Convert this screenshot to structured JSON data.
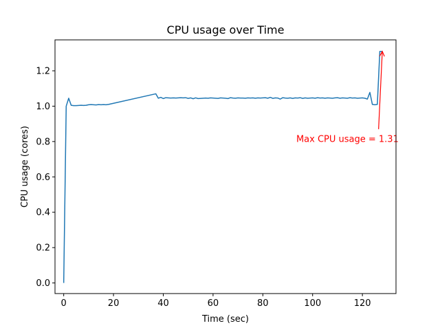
{
  "chart_data": {
    "type": "line",
    "title": "CPU usage over Time",
    "xlabel": "Time (sec)",
    "ylabel": "CPU usage (cores)",
    "xlim": [
      -3.5,
      133.5
    ],
    "ylim": [
      -0.06,
      1.375
    ],
    "xticks": [
      0,
      20,
      40,
      60,
      80,
      100,
      120
    ],
    "yticks": [
      0.0,
      0.2,
      0.4,
      0.6,
      0.8,
      1.0,
      1.2
    ],
    "xtick_labels": [
      "0",
      "20",
      "40",
      "60",
      "80",
      "100",
      "120"
    ],
    "ytick_labels": [
      "0.0",
      "0.2",
      "0.4",
      "0.6",
      "0.8",
      "1.0",
      "1.2"
    ],
    "grid": false,
    "series": [
      {
        "color": "#1f77b4",
        "x": [
          0,
          1,
          2,
          3,
          4,
          5,
          6,
          7,
          8,
          9,
          10,
          11,
          12,
          13,
          14,
          15,
          16,
          17,
          18,
          37,
          38,
          39,
          40,
          41,
          42,
          43,
          44,
          45,
          46,
          47,
          48,
          49,
          50,
          51,
          52,
          53,
          54,
          55,
          56,
          57,
          58,
          59,
          60,
          61,
          62,
          63,
          64,
          65,
          66,
          67,
          68,
          69,
          70,
          71,
          72,
          73,
          74,
          75,
          76,
          77,
          78,
          79,
          80,
          81,
          82,
          83,
          84,
          85,
          86,
          87,
          88,
          89,
          90,
          91,
          92,
          93,
          94,
          95,
          96,
          97,
          98,
          99,
          100,
          101,
          102,
          103,
          104,
          105,
          106,
          107,
          108,
          109,
          110,
          111,
          112,
          113,
          114,
          115,
          116,
          117,
          118,
          119,
          120,
          121,
          122,
          123,
          124,
          125,
          126,
          127,
          128
        ],
        "y": [
          0.0,
          1.0,
          1.045,
          1.005,
          1.003,
          1.003,
          1.004,
          1.005,
          1.004,
          1.005,
          1.008,
          1.009,
          1.008,
          1.007,
          1.009,
          1.008,
          1.009,
          1.008,
          1.01,
          1.07,
          1.045,
          1.05,
          1.043,
          1.048,
          1.047,
          1.046,
          1.047,
          1.046,
          1.047,
          1.048,
          1.047,
          1.048,
          1.044,
          1.047,
          1.042,
          1.047,
          1.043,
          1.044,
          1.045,
          1.046,
          1.045,
          1.047,
          1.046,
          1.045,
          1.044,
          1.047,
          1.046,
          1.045,
          1.043,
          1.048,
          1.046,
          1.045,
          1.047,
          1.046,
          1.046,
          1.045,
          1.047,
          1.046,
          1.047,
          1.045,
          1.047,
          1.046,
          1.047,
          1.048,
          1.045,
          1.05,
          1.044,
          1.047,
          1.046,
          1.04,
          1.048,
          1.046,
          1.045,
          1.047,
          1.044,
          1.047,
          1.046,
          1.048,
          1.044,
          1.047,
          1.045,
          1.046,
          1.047,
          1.045,
          1.048,
          1.046,
          1.047,
          1.045,
          1.047,
          1.046,
          1.045,
          1.047,
          1.048,
          1.045,
          1.047,
          1.046,
          1.045,
          1.048,
          1.046,
          1.047,
          1.045,
          1.046,
          1.047,
          1.045,
          1.04,
          1.078,
          1.01,
          1.008,
          1.01,
          1.31,
          1.31
        ]
      }
    ],
    "annotations": [
      {
        "text": "Max CPU usage = 1.31",
        "color": "#ff0000",
        "point": [
          128,
          1.31
        ],
        "text_at": [
          114,
          0.815
        ],
        "arrow_start": [
          126.5,
          0.87
        ]
      }
    ]
  }
}
